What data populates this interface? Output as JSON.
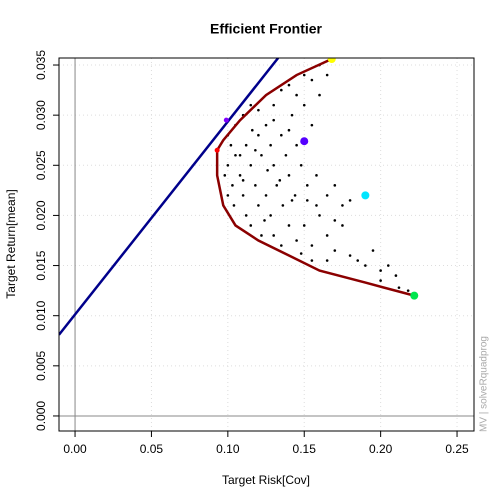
{
  "chart_data": {
    "type": "scatter",
    "title": "Efficient Frontier",
    "xlabel": "Target Risk[Cov]",
    "ylabel": "Target Return[mean]",
    "annotation": "MV | solveRquadprog",
    "xlim": [
      -0.0105,
      0.2611
    ],
    "ylim": [
      -0.0015,
      0.0357
    ],
    "xticks": [
      {
        "value": 0,
        "label": "0.00"
      },
      {
        "value": 0.05,
        "label": "0.05"
      },
      {
        "value": 0.1,
        "label": "0.10"
      },
      {
        "value": 0.15,
        "label": "0.15"
      },
      {
        "value": 0.2,
        "label": "0.20"
      },
      {
        "value": 0.25,
        "label": "0.25"
      }
    ],
    "yticks": [
      {
        "value": 0,
        "label": "0.000"
      },
      {
        "value": 0.005,
        "label": "0.005"
      },
      {
        "value": 0.01,
        "label": "0.010"
      },
      {
        "value": 0.015,
        "label": "0.015"
      },
      {
        "value": 0.02,
        "label": "0.020"
      },
      {
        "value": 0.025,
        "label": "0.025"
      },
      {
        "value": 0.03,
        "label": "0.030"
      },
      {
        "value": 0.035,
        "label": "0.035"
      }
    ],
    "grid": true,
    "series": [
      {
        "type": "scatter",
        "color": "#000000",
        "size": 1.3,
        "x": [
          0.1,
          0.105,
          0.11,
          0.115,
          0.12,
          0.125,
          0.13,
          0.135,
          0.14,
          0.145,
          0.15,
          0.155,
          0.16,
          0.165,
          0.15,
          0.142,
          0.135,
          0.128,
          0.12,
          0.112,
          0.105,
          0.1,
          0.098,
          0.103,
          0.108,
          0.115,
          0.122,
          0.13,
          0.138,
          0.145,
          0.155,
          0.16,
          0.148,
          0.14,
          0.132,
          0.125,
          0.118,
          0.11,
          0.104,
          0.1,
          0.112,
          0.12,
          0.128,
          0.136,
          0.144,
          0.152,
          0.158,
          0.165,
          0.17,
          0.175,
          0.16,
          0.15,
          0.14,
          0.13,
          0.122,
          0.115,
          0.135,
          0.145,
          0.155,
          0.165,
          0.17,
          0.18,
          0.19,
          0.2,
          0.21,
          0.205,
          0.195,
          0.185,
          0.175,
          0.165,
          0.155,
          0.148,
          0.2,
          0.212,
          0.218,
          0.108,
          0.102,
          0.118,
          0.126,
          0.134,
          0.142,
          0.158,
          0.124,
          0.11,
          0.116,
          0.13,
          0.14,
          0.152,
          0.18,
          0.17
        ],
        "values": [
          0.028,
          0.029,
          0.03,
          0.031,
          0.0305,
          0.029,
          0.031,
          0.0325,
          0.033,
          0.032,
          0.034,
          0.0335,
          0.035,
          0.034,
          0.031,
          0.03,
          0.028,
          0.027,
          0.028,
          0.027,
          0.026,
          0.025,
          0.024,
          0.023,
          0.024,
          0.025,
          0.026,
          0.025,
          0.026,
          0.027,
          0.029,
          0.032,
          0.025,
          0.024,
          0.023,
          0.022,
          0.023,
          0.022,
          0.021,
          0.022,
          0.02,
          0.021,
          0.02,
          0.021,
          0.022,
          0.023,
          0.024,
          0.022,
          0.023,
          0.021,
          0.02,
          0.019,
          0.019,
          0.018,
          0.018,
          0.019,
          0.017,
          0.0175,
          0.017,
          0.018,
          0.0165,
          0.016,
          0.015,
          0.0145,
          0.014,
          0.015,
          0.0165,
          0.0155,
          0.019,
          0.0155,
          0.0155,
          0.0162,
          0.0135,
          0.0128,
          0.0125,
          0.026,
          0.027,
          0.0265,
          0.0245,
          0.0235,
          0.0215,
          0.021,
          0.0195,
          0.0235,
          0.0285,
          0.0295,
          0.0285,
          0.0215,
          0.0215,
          0.0195
        ]
      },
      {
        "type": "line",
        "color": "#00008b",
        "x": [
          -0.0105,
          0.1329
        ],
        "values": [
          0.0081,
          0.0357
        ]
      },
      {
        "type": "line",
        "color": "#8b0000",
        "x": [
          0.168,
          0.145,
          0.125,
          0.108,
          0.097,
          0.093,
          0.093,
          0.097,
          0.105,
          0.12,
          0.14,
          0.16,
          0.19,
          0.222
        ],
        "values": [
          0.0356,
          0.034,
          0.032,
          0.0295,
          0.0275,
          0.0265,
          0.024,
          0.021,
          0.019,
          0.0175,
          0.016,
          0.0145,
          0.0133,
          0.012
        ]
      },
      {
        "type": "scatter",
        "color": "#ffff00",
        "size": 4,
        "x": [
          0.168
        ],
        "values": [
          0.0356
        ]
      },
      {
        "type": "scatter",
        "color": "#5500ff",
        "size": 4,
        "x": [
          0.15
        ],
        "values": [
          0.0274
        ]
      },
      {
        "type": "scatter",
        "color": "#00e5ff",
        "size": 4,
        "x": [
          0.19
        ],
        "values": [
          0.022
        ]
      },
      {
        "type": "scatter",
        "color": "#00e64d",
        "size": 4,
        "x": [
          0.222
        ],
        "values": [
          0.012
        ]
      },
      {
        "type": "scatter",
        "color": "#ff0000",
        "size": 2.5,
        "x": [
          0.093
        ],
        "values": [
          0.0265
        ]
      },
      {
        "type": "scatter",
        "color": "#8000ff",
        "size": 2.5,
        "x": [
          0.099
        ],
        "values": [
          0.0295
        ]
      }
    ]
  }
}
